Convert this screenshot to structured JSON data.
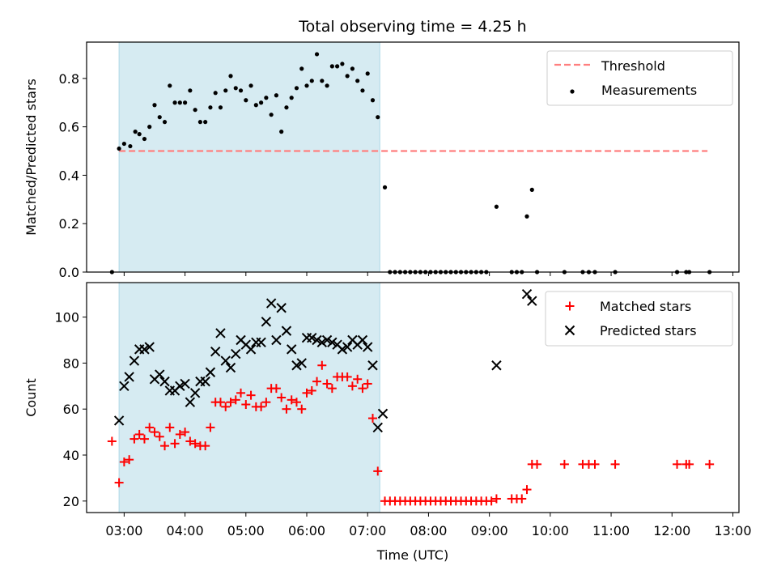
{
  "figure": {
    "title": "Total observing time = 4.25 h",
    "xlabel": "Time (UTC)"
  },
  "colors": {
    "shade": "#add8e6",
    "threshold": "#ff7f7f",
    "matched": "#ff0000",
    "predicted": "#000000",
    "measurement": "#000000"
  },
  "chart_data": [
    {
      "type": "scatter",
      "ylabel": "Matched/Predicted stars",
      "xlim": [
        "02:23",
        "13:06"
      ],
      "ylim": [
        0,
        0.95
      ],
      "x_ticks": [
        "03:00",
        "04:00",
        "05:00",
        "06:00",
        "07:00",
        "08:00",
        "09:00",
        "10:00",
        "11:00",
        "12:00",
        "13:00"
      ],
      "y_ticks": [
        "0.0",
        "0.2",
        "0.4",
        "0.6",
        "0.8"
      ],
      "shaded_span": [
        "02:55",
        "07:12"
      ],
      "legend_position": "upper right",
      "legend": [
        "Threshold",
        "Measurements"
      ],
      "threshold": {
        "name": "Threshold",
        "value": 0.5,
        "x_range": [
          "02:55",
          "12:35"
        ],
        "style": "dashed"
      },
      "series": [
        {
          "name": "Measurements",
          "marker": "dot",
          "points": [
            [
              "02:48",
              0.0
            ],
            [
              "02:55",
              0.51
            ],
            [
              "03:00",
              0.53
            ],
            [
              "03:06",
              0.52
            ],
            [
              "03:11",
              0.58
            ],
            [
              "03:15",
              0.57
            ],
            [
              "03:20",
              0.55
            ],
            [
              "03:25",
              0.6
            ],
            [
              "03:30",
              0.69
            ],
            [
              "03:35",
              0.64
            ],
            [
              "03:40",
              0.62
            ],
            [
              "03:45",
              0.77
            ],
            [
              "03:50",
              0.7
            ],
            [
              "03:55",
              0.7
            ],
            [
              "04:00",
              0.7
            ],
            [
              "04:05",
              0.75
            ],
            [
              "04:10",
              0.67
            ],
            [
              "04:15",
              0.62
            ],
            [
              "04:20",
              0.62
            ],
            [
              "04:25",
              0.68
            ],
            [
              "04:30",
              0.74
            ],
            [
              "04:35",
              0.68
            ],
            [
              "04:40",
              0.75
            ],
            [
              "04:45",
              0.81
            ],
            [
              "04:50",
              0.76
            ],
            [
              "04:55",
              0.75
            ],
            [
              "05:00",
              0.71
            ],
            [
              "05:05",
              0.77
            ],
            [
              "05:10",
              0.69
            ],
            [
              "05:15",
              0.7
            ],
            [
              "05:20",
              0.72
            ],
            [
              "05:25",
              0.65
            ],
            [
              "05:30",
              0.73
            ],
            [
              "05:35",
              0.58
            ],
            [
              "05:40",
              0.68
            ],
            [
              "05:45",
              0.72
            ],
            [
              "05:50",
              0.76
            ],
            [
              "05:55",
              0.84
            ],
            [
              "06:00",
              0.77
            ],
            [
              "06:05",
              0.79
            ],
            [
              "06:10",
              0.9
            ],
            [
              "06:15",
              0.79
            ],
            [
              "06:20",
              0.77
            ],
            [
              "06:25",
              0.85
            ],
            [
              "06:30",
              0.85
            ],
            [
              "06:35",
              0.86
            ],
            [
              "06:40",
              0.81
            ],
            [
              "06:45",
              0.84
            ],
            [
              "06:50",
              0.79
            ],
            [
              "06:55",
              0.75
            ],
            [
              "07:00",
              0.82
            ],
            [
              "07:05",
              0.71
            ],
            [
              "07:10",
              0.64
            ],
            [
              "07:17",
              0.35
            ],
            [
              "07:22",
              0.0
            ],
            [
              "07:27",
              0.0
            ],
            [
              "07:32",
              0.0
            ],
            [
              "07:37",
              0.0
            ],
            [
              "07:42",
              0.0
            ],
            [
              "07:47",
              0.0
            ],
            [
              "07:52",
              0.0
            ],
            [
              "07:57",
              0.0
            ],
            [
              "08:02",
              0.0
            ],
            [
              "08:07",
              0.0
            ],
            [
              "08:12",
              0.0
            ],
            [
              "08:17",
              0.0
            ],
            [
              "08:22",
              0.0
            ],
            [
              "08:27",
              0.0
            ],
            [
              "08:32",
              0.0
            ],
            [
              "08:37",
              0.0
            ],
            [
              "08:42",
              0.0
            ],
            [
              "08:47",
              0.0
            ],
            [
              "08:52",
              0.0
            ],
            [
              "08:57",
              0.0
            ],
            [
              "09:07",
              0.27
            ],
            [
              "09:22",
              0.0
            ],
            [
              "09:27",
              0.0
            ],
            [
              "09:32",
              0.0
            ],
            [
              "09:37",
              0.23
            ],
            [
              "09:42",
              0.34
            ],
            [
              "09:47",
              0.0
            ],
            [
              "10:14",
              0.0
            ],
            [
              "10:32",
              0.0
            ],
            [
              "10:38",
              0.0
            ],
            [
              "10:44",
              0.0
            ],
            [
              "11:04",
              0.0
            ],
            [
              "12:05",
              0.0
            ],
            [
              "12:14",
              0.0
            ],
            [
              "12:17",
              0.0
            ],
            [
              "12:37",
              0.0
            ]
          ]
        }
      ]
    },
    {
      "type": "scatter",
      "ylabel": "Count",
      "xlim": [
        "02:23",
        "13:06"
      ],
      "ylim": [
        15,
        115
      ],
      "x_ticks": [
        "03:00",
        "04:00",
        "05:00",
        "06:00",
        "07:00",
        "08:00",
        "09:00",
        "10:00",
        "11:00",
        "12:00",
        "13:00"
      ],
      "y_ticks": [
        "20",
        "40",
        "60",
        "80",
        "100"
      ],
      "shaded_span": [
        "02:55",
        "07:12"
      ],
      "legend_position": "upper right",
      "legend": [
        "Matched stars",
        "Predicted stars"
      ],
      "series": [
        {
          "name": "Matched stars",
          "marker": "plus",
          "points": [
            [
              "02:48",
              46
            ],
            [
              "02:55",
              28
            ],
            [
              "03:00",
              37
            ],
            [
              "03:05",
              38
            ],
            [
              "03:10",
              47
            ],
            [
              "03:15",
              49
            ],
            [
              "03:20",
              47
            ],
            [
              "03:25",
              52
            ],
            [
              "03:30",
              50
            ],
            [
              "03:35",
              48
            ],
            [
              "03:40",
              44
            ],
            [
              "03:45",
              52
            ],
            [
              "03:50",
              45
            ],
            [
              "03:55",
              49
            ],
            [
              "04:00",
              50
            ],
            [
              "04:05",
              46
            ],
            [
              "04:10",
              45
            ],
            [
              "04:15",
              44
            ],
            [
              "04:20",
              44
            ],
            [
              "04:25",
              52
            ],
            [
              "04:30",
              63
            ],
            [
              "04:35",
              63
            ],
            [
              "04:40",
              61
            ],
            [
              "04:45",
              63
            ],
            [
              "04:50",
              64
            ],
            [
              "04:55",
              67
            ],
            [
              "05:00",
              62
            ],
            [
              "05:05",
              66
            ],
            [
              "05:10",
              61
            ],
            [
              "05:15",
              61
            ],
            [
              "05:20",
              63
            ],
            [
              "05:25",
              69
            ],
            [
              "05:30",
              69
            ],
            [
              "05:35",
              65
            ],
            [
              "05:40",
              60
            ],
            [
              "05:45",
              64
            ],
            [
              "05:50",
              63
            ],
            [
              "05:55",
              60
            ],
            [
              "06:00",
              67
            ],
            [
              "06:05",
              68
            ],
            [
              "06:10",
              72
            ],
            [
              "06:15",
              79
            ],
            [
              "06:20",
              71
            ],
            [
              "06:25",
              69
            ],
            [
              "06:30",
              74
            ],
            [
              "06:35",
              74
            ],
            [
              "06:40",
              74
            ],
            [
              "06:45",
              70
            ],
            [
              "06:50",
              73
            ],
            [
              "06:55",
              69
            ],
            [
              "07:00",
              71
            ],
            [
              "07:05",
              56
            ],
            [
              "07:10",
              33
            ],
            [
              "07:17",
              20
            ],
            [
              "07:22",
              20
            ],
            [
              "07:27",
              20
            ],
            [
              "07:32",
              20
            ],
            [
              "07:37",
              20
            ],
            [
              "07:42",
              20
            ],
            [
              "07:47",
              20
            ],
            [
              "07:52",
              20
            ],
            [
              "07:57",
              20
            ],
            [
              "08:02",
              20
            ],
            [
              "08:07",
              20
            ],
            [
              "08:12",
              20
            ],
            [
              "08:17",
              20
            ],
            [
              "08:22",
              20
            ],
            [
              "08:27",
              20
            ],
            [
              "08:32",
              20
            ],
            [
              "08:37",
              20
            ],
            [
              "08:42",
              20
            ],
            [
              "08:47",
              20
            ],
            [
              "08:52",
              20
            ],
            [
              "08:57",
              20
            ],
            [
              "09:02",
              20
            ],
            [
              "09:07",
              21
            ],
            [
              "09:22",
              21
            ],
            [
              "09:27",
              21
            ],
            [
              "09:32",
              21
            ],
            [
              "09:37",
              25
            ],
            [
              "09:42",
              36
            ],
            [
              "09:47",
              36
            ],
            [
              "10:14",
              36
            ],
            [
              "10:32",
              36
            ],
            [
              "10:38",
              36
            ],
            [
              "10:44",
              36
            ],
            [
              "11:04",
              36
            ],
            [
              "12:05",
              36
            ],
            [
              "12:14",
              36
            ],
            [
              "12:17",
              36
            ],
            [
              "12:37",
              36
            ]
          ]
        },
        {
          "name": "Predicted stars",
          "marker": "x",
          "points": [
            [
              "02:55",
              55
            ],
            [
              "03:00",
              70
            ],
            [
              "03:05",
              74
            ],
            [
              "03:10",
              81
            ],
            [
              "03:15",
              86
            ],
            [
              "03:20",
              86
            ],
            [
              "03:25",
              87
            ],
            [
              "03:30",
              73
            ],
            [
              "03:35",
              75
            ],
            [
              "03:40",
              72
            ],
            [
              "03:45",
              68
            ],
            [
              "03:50",
              68
            ],
            [
              "03:55",
              70
            ],
            [
              "04:00",
              71
            ],
            [
              "04:05",
              63
            ],
            [
              "04:10",
              67
            ],
            [
              "04:15",
              72
            ],
            [
              "04:20",
              72
            ],
            [
              "04:25",
              76
            ],
            [
              "04:30",
              85
            ],
            [
              "04:35",
              93
            ],
            [
              "04:40",
              81
            ],
            [
              "04:45",
              78
            ],
            [
              "04:50",
              84
            ],
            [
              "04:55",
              90
            ],
            [
              "05:00",
              88
            ],
            [
              "05:05",
              86
            ],
            [
              "05:10",
              89
            ],
            [
              "05:15",
              89
            ],
            [
              "05:20",
              98
            ],
            [
              "05:25",
              106
            ],
            [
              "05:30",
              90
            ],
            [
              "05:35",
              104
            ],
            [
              "05:40",
              94
            ],
            [
              "05:45",
              86
            ],
            [
              "05:50",
              79
            ],
            [
              "05:55",
              80
            ],
            [
              "06:00",
              91
            ],
            [
              "06:05",
              91
            ],
            [
              "06:10",
              90
            ],
            [
              "06:15",
              89
            ],
            [
              "06:20",
              90
            ],
            [
              "06:25",
              89
            ],
            [
              "06:30",
              88
            ],
            [
              "06:35",
              86
            ],
            [
              "06:40",
              87
            ],
            [
              "06:45",
              90
            ],
            [
              "06:50",
              88
            ],
            [
              "06:55",
              90
            ],
            [
              "07:00",
              87
            ],
            [
              "07:05",
              79
            ],
            [
              "07:10",
              52
            ],
            [
              "07:15",
              58
            ],
            [
              "09:07",
              79
            ],
            [
              "09:37",
              110
            ],
            [
              "09:42",
              107
            ]
          ]
        }
      ]
    }
  ]
}
